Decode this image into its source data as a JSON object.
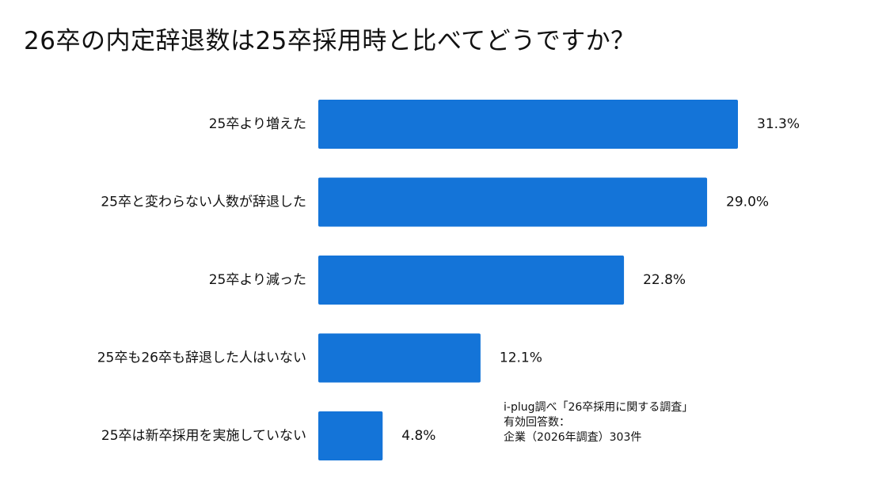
{
  "chart_data": {
    "type": "bar",
    "orientation": "horizontal",
    "title": "26卒の内定辞退数は25卒採用時と比べてどうですか？",
    "categories": [
      "25卒より増えた",
      "25卒と変わらない人数が辞退した",
      "25卒より減った",
      "25卒も26卒も辞退した人はいない",
      "25卒は新卒採用を実施していない"
    ],
    "values": [
      31.3,
      29.0,
      22.8,
      12.1,
      4.8
    ],
    "value_labels": [
      "31.3%",
      "29.0%",
      "22.8%",
      "12.1%",
      "4.8%"
    ],
    "unit": "%",
    "xlim": [
      0,
      32
    ],
    "grid": false,
    "legend": "none",
    "bar_color": "#1474d8"
  },
  "note": {
    "line1": "i-plug調べ「26卒採用に関する調査」",
    "line2": "有効回答数：",
    "line3": "企業（2026年調査）303件"
  }
}
